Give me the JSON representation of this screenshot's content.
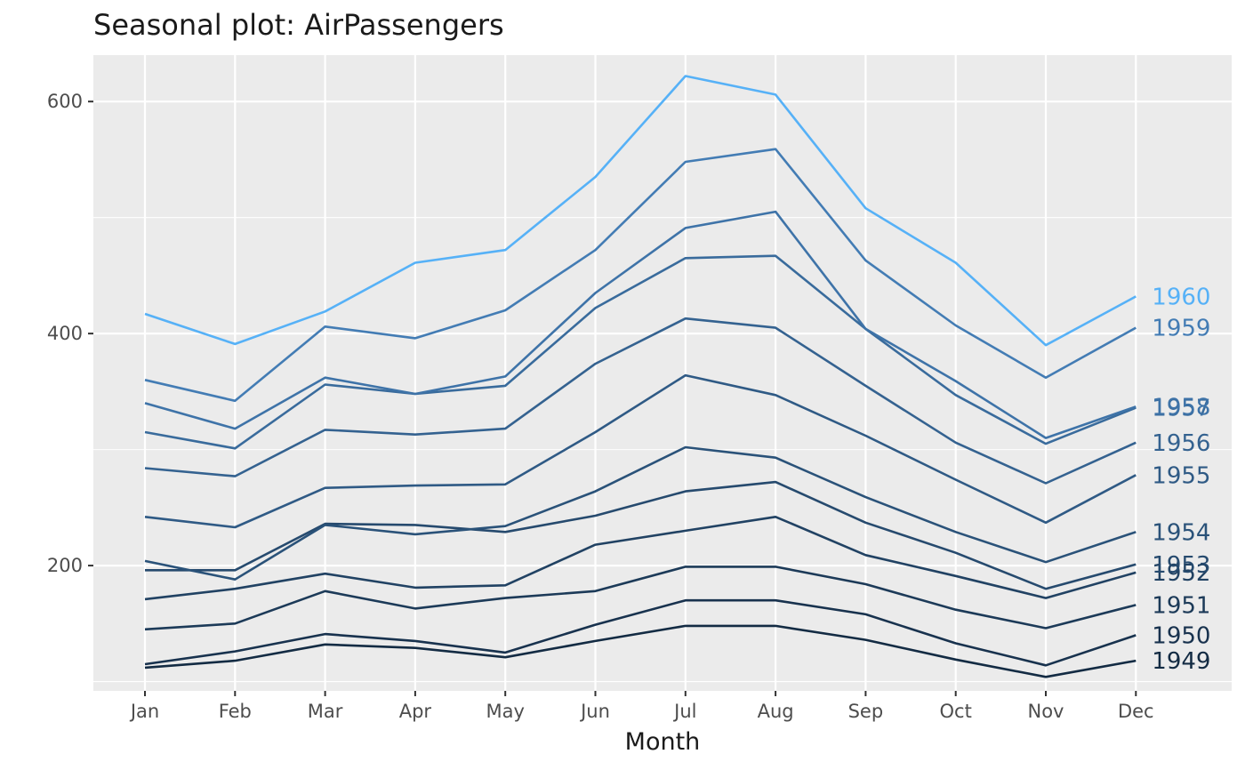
{
  "chart_data": {
    "type": "line",
    "title": "Seasonal plot: AirPassengers",
    "xlabel": "Month",
    "ylabel": "",
    "categories": [
      "Jan",
      "Feb",
      "Mar",
      "Apr",
      "May",
      "Jun",
      "Jul",
      "Aug",
      "Sep",
      "Oct",
      "Nov",
      "Dec"
    ],
    "ylim": [
      92,
      640
    ],
    "yticks": [
      200,
      400,
      600
    ],
    "grid": true,
    "legend": "none",
    "series": [
      {
        "name": "1949",
        "color": "#132B43",
        "values": [
          112,
          118,
          132,
          129,
          121,
          135,
          148,
          148,
          136,
          119,
          104,
          118
        ]
      },
      {
        "name": "1950",
        "color": "#18324E",
        "values": [
          115,
          126,
          141,
          135,
          125,
          149,
          170,
          170,
          158,
          133,
          114,
          140
        ]
      },
      {
        "name": "1951",
        "color": "#1C3A58",
        "values": [
          145,
          150,
          178,
          163,
          172,
          178,
          199,
          199,
          184,
          162,
          146,
          166
        ]
      },
      {
        "name": "1952",
        "color": "#214263",
        "values": [
          171,
          180,
          193,
          181,
          183,
          218,
          230,
          242,
          209,
          191,
          172,
          194
        ]
      },
      {
        "name": "1953",
        "color": "#264A6E",
        "values": [
          196,
          196,
          236,
          235,
          229,
          243,
          264,
          272,
          237,
          211,
          180,
          201
        ]
      },
      {
        "name": "1954",
        "color": "#2A5279",
        "values": [
          204,
          188,
          235,
          227,
          234,
          264,
          302,
          293,
          259,
          229,
          203,
          229
        ]
      },
      {
        "name": "1955",
        "color": "#2F5A85",
        "values": [
          242,
          233,
          267,
          269,
          270,
          315,
          364,
          347,
          312,
          274,
          237,
          278
        ]
      },
      {
        "name": "1956",
        "color": "#346290",
        "values": [
          284,
          277,
          317,
          313,
          318,
          374,
          413,
          405,
          355,
          306,
          271,
          306
        ]
      },
      {
        "name": "1957",
        "color": "#396B9C",
        "values": [
          315,
          301,
          356,
          348,
          355,
          422,
          465,
          467,
          404,
          347,
          305,
          336
        ]
      },
      {
        "name": "1958",
        "color": "#3E73A8",
        "values": [
          340,
          318,
          362,
          348,
          363,
          435,
          491,
          505,
          404,
          359,
          310,
          337
        ]
      },
      {
        "name": "1959",
        "color": "#437CB4",
        "values": [
          360,
          342,
          406,
          396,
          420,
          472,
          548,
          559,
          463,
          407,
          362,
          405
        ]
      },
      {
        "name": "1960",
        "color": "#56B1F7",
        "values": [
          417,
          391,
          419,
          461,
          472,
          535,
          622,
          606,
          508,
          461,
          390,
          432
        ]
      }
    ]
  }
}
